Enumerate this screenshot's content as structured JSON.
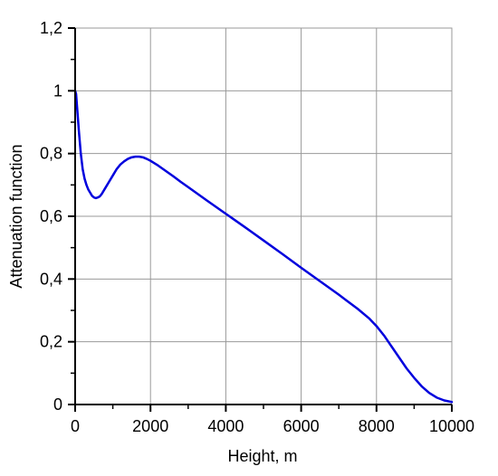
{
  "chart_data": {
    "type": "line",
    "title": "",
    "xlabel": "Height, m",
    "ylabel": "Attenuation function",
    "xlim": [
      0,
      10000
    ],
    "ylim": [
      0,
      1.2
    ],
    "x_ticks": [
      0,
      2000,
      4000,
      6000,
      8000,
      10000
    ],
    "x_tick_labels": [
      "0",
      "2000",
      "4000",
      "6000",
      "8000",
      "10000"
    ],
    "y_ticks": [
      0,
      0.2,
      0.4,
      0.6,
      0.8,
      1.0,
      1.2
    ],
    "y_tick_labels": [
      "0",
      "0,2",
      "0,4",
      "0,6",
      "0,8",
      "1",
      "1,2"
    ],
    "grid": true,
    "legend": "none",
    "series": [
      {
        "color": "#0000dd",
        "x": [
          0,
          25,
          50,
          100,
          150,
          200,
          250,
          300,
          350,
          400,
          450,
          500,
          550,
          600,
          650,
          700,
          800,
          900,
          1000,
          1100,
          1200,
          1300,
          1400,
          1500,
          1600,
          1700,
          1800,
          1900,
          2000,
          2200,
          2400,
          2600,
          2800,
          3000,
          3500,
          4000,
          4500,
          5000,
          5500,
          6000,
          6500,
          7000,
          7500,
          7800,
          8000,
          8200,
          8400,
          8600,
          8800,
          9000,
          9200,
          9400,
          9600,
          9800,
          10000
        ],
        "y": [
          1.0,
          0.99,
          0.95,
          0.87,
          0.8,
          0.75,
          0.72,
          0.7,
          0.685,
          0.675,
          0.665,
          0.66,
          0.658,
          0.66,
          0.663,
          0.67,
          0.69,
          0.71,
          0.73,
          0.75,
          0.765,
          0.775,
          0.783,
          0.788,
          0.79,
          0.79,
          0.788,
          0.783,
          0.777,
          0.762,
          0.745,
          0.728,
          0.71,
          0.693,
          0.65,
          0.608,
          0.566,
          0.523,
          0.48,
          0.436,
          0.393,
          0.35,
          0.305,
          0.275,
          0.25,
          0.22,
          0.185,
          0.15,
          0.115,
          0.085,
          0.058,
          0.037,
          0.022,
          0.013,
          0.008
        ]
      }
    ]
  }
}
